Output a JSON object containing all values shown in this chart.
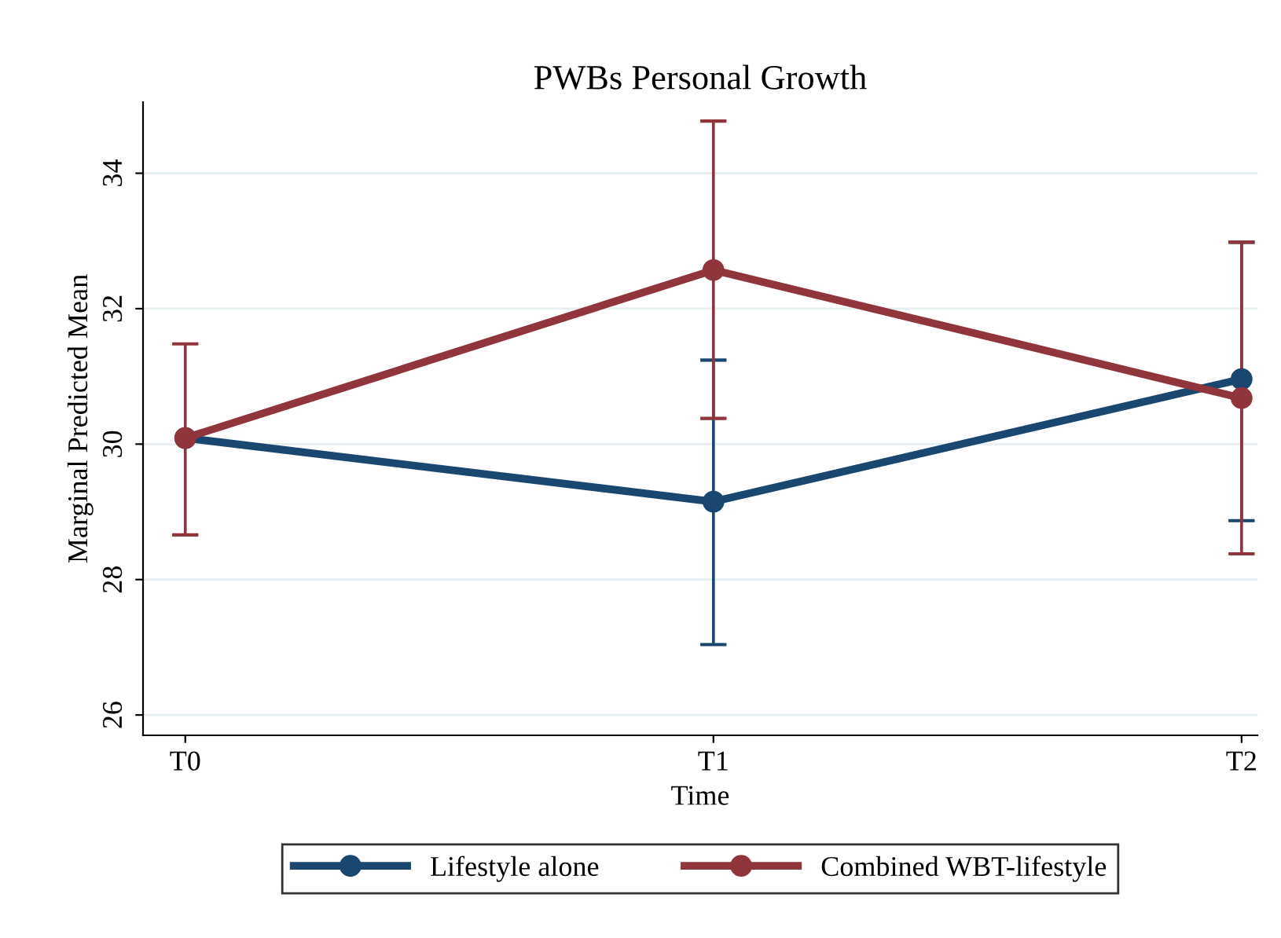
{
  "chart_data": {
    "type": "line",
    "title": "PWBs Personal Growth",
    "xlabel": "Time",
    "ylabel": "Marginal Predicted Mean",
    "categories": [
      "T0",
      "T1",
      "T2"
    ],
    "series": [
      {
        "name": "Lifestyle alone",
        "color": "#1a476f",
        "values": [
          30.09,
          29.15,
          30.96
        ],
        "errors": [
          null,
          [
            27.04,
            31.24
          ],
          [
            28.87,
            32.98
          ]
        ]
      },
      {
        "name": "Combined WBT-lifestyle",
        "color": "#90353b",
        "values": [
          30.09,
          32.57,
          30.68
        ],
        "errors": [
          [
            28.66,
            31.48
          ],
          [
            30.38,
            34.77
          ],
          [
            28.38,
            32.98
          ]
        ]
      }
    ],
    "ylim": [
      25.7,
      35.05
    ],
    "yticks": [
      26,
      28,
      30,
      32,
      34
    ],
    "grid": "y",
    "legend": "bottom",
    "marker": "circle",
    "line_style": "solid"
  }
}
